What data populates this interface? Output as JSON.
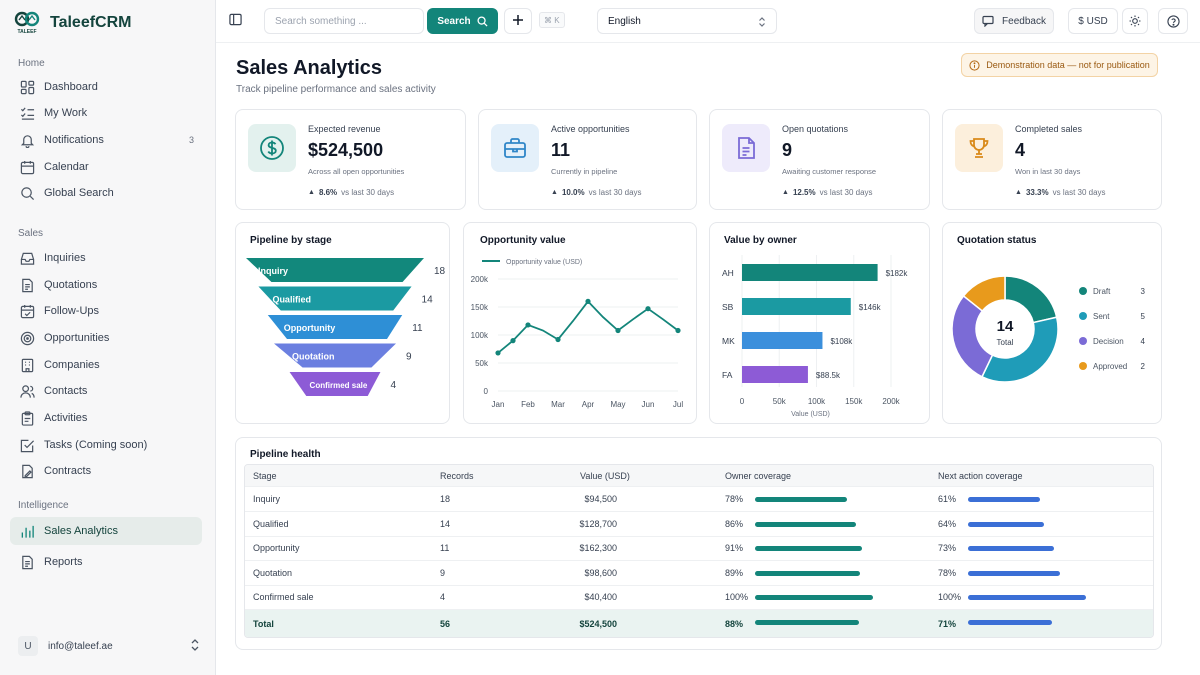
{
  "brand": {
    "name": "TaleefCRM",
    "logo_text": "TALEEF"
  },
  "sidebar": {
    "sections": [
      {
        "label": "Home",
        "items": [
          {
            "label": "Dashboard",
            "icon": "grid-icon"
          },
          {
            "label": "My Work",
            "icon": "checklist-icon"
          },
          {
            "label": "Notifications",
            "icon": "bell-icon",
            "badge": "3"
          },
          {
            "label": "Calendar",
            "icon": "calendar-icon"
          },
          {
            "label": "Global Search",
            "icon": "search-icon"
          }
        ]
      },
      {
        "label": "Sales",
        "items": [
          {
            "label": "Inquiries",
            "icon": "inbox-icon"
          },
          {
            "label": "Quotations",
            "icon": "document-icon"
          },
          {
            "label": "Follow-Ups",
            "icon": "calendar-check-icon"
          },
          {
            "label": "Opportunities",
            "icon": "target-icon"
          },
          {
            "label": "Companies",
            "icon": "building-icon"
          },
          {
            "label": "Contacts",
            "icon": "users-icon"
          },
          {
            "label": "Activities",
            "icon": "clipboard-icon"
          },
          {
            "label": "Tasks (Coming soon)",
            "icon": "task-check-icon"
          },
          {
            "label": "Contracts",
            "icon": "contract-icon"
          }
        ]
      },
      {
        "label": "Intelligence",
        "items": [
          {
            "label": "Sales Analytics",
            "icon": "bar-chart-icon",
            "active": true
          },
          {
            "label": "Reports",
            "icon": "report-icon"
          }
        ]
      }
    ],
    "user": {
      "initial": "U",
      "email": "info@taleef.ae"
    }
  },
  "topbar": {
    "search_placeholder": "Search something ...",
    "search_label": "Search",
    "shortcut": "⌘ K",
    "language": "English",
    "feedback_label": "Feedback",
    "currency_label": "$ USD"
  },
  "page": {
    "title": "Sales Analytics",
    "subtitle": "Track pipeline performance and sales activity",
    "demo_badge": "Demonstration data — not for publication"
  },
  "stats": [
    {
      "label": "Expected revenue",
      "value": "$524,500",
      "hint": "Across all open opportunities",
      "trend": "8.6%",
      "trend_suffix": "vs last 30 days",
      "icon": "dollar-icon",
      "color": "#13857a",
      "bg": "#e3f1ee"
    },
    {
      "label": "Active opportunities",
      "value": "11",
      "hint": "Currently in pipeline",
      "trend": "10.0%",
      "trend_suffix": "vs last 30 days",
      "icon": "briefcase-icon",
      "color": "#2f86c8",
      "bg": "#e4f0fa"
    },
    {
      "label": "Open quotations",
      "value": "9",
      "hint": "Awaiting customer response",
      "trend": "12.5%",
      "trend_suffix": "vs last 30 days",
      "icon": "file-icon",
      "color": "#7b6bd6",
      "bg": "#eeebfb"
    },
    {
      "label": "Completed sales",
      "value": "4",
      "hint": "Won in last 30 days",
      "trend": "33.3%",
      "trend_suffix": "vs last 30 days",
      "icon": "trophy-icon",
      "color": "#d98a1a",
      "bg": "#fcefdc"
    }
  ],
  "panels": {
    "funnel_title": "Pipeline by stage",
    "line_title": "Opportunity value",
    "owner_title": "Value by owner",
    "status_title": "Quotation status",
    "health_title": "Pipeline health"
  },
  "chart_data": [
    {
      "type": "bar",
      "subtype": "funnel",
      "title": "Pipeline by stage",
      "categories": [
        "Inquiry",
        "Qualified",
        "Opportunity",
        "Quotation",
        "Confirmed sale"
      ],
      "values": [
        18,
        14,
        11,
        9,
        4
      ],
      "colors": [
        "#12887c",
        "#1b9aa2",
        "#2e8fd6",
        "#6b7fe0",
        "#8d5bd6"
      ]
    },
    {
      "type": "line",
      "title": "Opportunity value",
      "legend": "Opportunity value (USD)",
      "categories": [
        "Jan",
        "Feb",
        "Mar",
        "Apr",
        "May",
        "Jun",
        "Jul"
      ],
      "x": [
        0,
        0.5,
        1,
        1.5,
        2,
        2.5,
        3,
        3.5,
        4,
        4.5,
        5,
        5.5,
        6
      ],
      "values": [
        68000,
        90000,
        118000,
        108000,
        92000,
        125000,
        160000,
        132000,
        108000,
        128000,
        147000,
        128000,
        108000
      ],
      "y_ticks": [
        "0",
        "50k",
        "100k",
        "150k",
        "200k"
      ],
      "ylim": [
        0,
        200000
      ],
      "grid": true,
      "color": "#13857a"
    },
    {
      "type": "bar",
      "orientation": "horizontal",
      "title": "Value by owner",
      "categories": [
        "AH",
        "SB",
        "MK",
        "FA"
      ],
      "values": [
        182000,
        146000,
        108000,
        88500
      ],
      "value_labels": [
        "$182k",
        "$146k",
        "$108k",
        "$88.5k"
      ],
      "colors": [
        "#13857a",
        "#1b9aa2",
        "#3b8fdc",
        "#8d5bd6"
      ],
      "x_ticks": [
        "0",
        "50k",
        "100k",
        "150k",
        "200k"
      ],
      "xlim": [
        0,
        200000
      ],
      "xlabel": "Value (USD)",
      "grid": true
    },
    {
      "type": "pie",
      "subtype": "donut",
      "title": "Quotation status",
      "center_value": "14",
      "center_label": "Total",
      "categories": [
        "Draft",
        "Sent",
        "Decision",
        "Approved"
      ],
      "values": [
        3,
        5,
        4,
        2
      ],
      "colors": [
        "#13857a",
        "#1f9cb8",
        "#7b6bd6",
        "#e89a1c"
      ],
      "legend": "right"
    }
  ],
  "pipeline_health": {
    "headers": [
      "Stage",
      "Records",
      "Value (USD)",
      "Owner coverage",
      "Next action coverage"
    ],
    "rows": [
      {
        "stage": "Inquiry",
        "records": "18",
        "value": "$94,500",
        "owner": "78%",
        "owner_v": 78,
        "next": "61%",
        "next_v": 61
      },
      {
        "stage": "Qualified",
        "records": "14",
        "value": "$128,700",
        "owner": "86%",
        "owner_v": 86,
        "next": "64%",
        "next_v": 64
      },
      {
        "stage": "Opportunity",
        "records": "11",
        "value": "$162,300",
        "owner": "91%",
        "owner_v": 91,
        "next": "73%",
        "next_v": 73
      },
      {
        "stage": "Quotation",
        "records": "9",
        "value": "$98,600",
        "owner": "89%",
        "owner_v": 89,
        "next": "78%",
        "next_v": 78
      },
      {
        "stage": "Confirmed sale",
        "records": "4",
        "value": "$40,400",
        "owner": "100%",
        "owner_v": 100,
        "next": "100%",
        "next_v": 100
      }
    ],
    "total": {
      "stage": "Total",
      "records": "56",
      "value": "$524,500",
      "owner": "88%",
      "owner_v": 88,
      "next": "71%",
      "next_v": 71
    },
    "owner_color": "#13857a",
    "next_color": "#3b6fd6"
  }
}
